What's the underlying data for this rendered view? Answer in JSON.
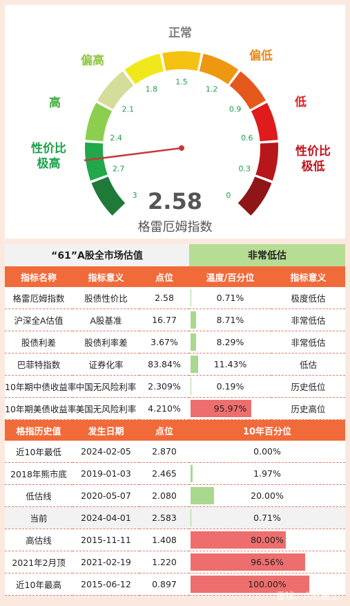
{
  "gauge": {
    "zones": [
      {
        "text": "正常",
        "color": "#7f7f7f"
      },
      {
        "text": "偏高",
        "color": "#8dc63f"
      },
      {
        "text": "偏低",
        "color": "#e38c1e"
      },
      {
        "text": "高",
        "color": "#3dae3d"
      },
      {
        "text": "低",
        "color": "#e41e26"
      },
      {
        "text": "性价比\n极高",
        "color": "#1aa24a"
      },
      {
        "text": "性价比\n极低",
        "color": "#c0141c"
      }
    ],
    "ticks": [
      "3",
      "2.7",
      "2.4",
      "2.1",
      "1.8",
      "1.5",
      "1.2",
      "0.9",
      "0.6",
      "0.3",
      "0"
    ],
    "segment_colors": [
      "#1f7a3a",
      "#22a84a",
      "#8ccf50",
      "#d4dd9a",
      "#f1e81b",
      "#f5c211",
      "#ee9811",
      "#e5581c",
      "#e01b1b",
      "#b7171a",
      "#8f1518"
    ],
    "needle_color": "#c23b3b",
    "tick_color": "#19a14a",
    "min": 0,
    "max": 3,
    "value": 2.58,
    "value_text": "2.58",
    "label": "格雷厄姆指数"
  },
  "section1": {
    "title_left": "“61”A股全市场估值",
    "title_right": "非常低估",
    "headers": [
      "指标名称",
      "指标意义",
      "点位",
      "温度/百分位",
      "指标意义"
    ],
    "rows": [
      {
        "name": "格雷厄姆指数",
        "meaning": "股债性价比",
        "point": "2.58",
        "pct": "0.71%",
        "pct_value": 0.71,
        "bar": "green",
        "level": "极度低估"
      },
      {
        "name": "沪深全A估值",
        "meaning": "A股基准",
        "point": "16.77",
        "pct": "8.71%",
        "pct_value": 8.71,
        "bar": "green",
        "level": "非常低估"
      },
      {
        "name": "股债利差",
        "meaning": "股债利率差",
        "point": "3.67%",
        "pct": "8.29%",
        "pct_value": 8.29,
        "bar": "green",
        "level": "非常低估"
      },
      {
        "name": "巴菲特指数",
        "meaning": "证券化率",
        "point": "83.84%",
        "pct": "11.43%",
        "pct_value": 11.43,
        "bar": "green",
        "level": "低估"
      },
      {
        "name": "10年期中债收益率",
        "meaning": "中国无风险利率",
        "point": "2.309%",
        "pct": "0.19%",
        "pct_value": 0.19,
        "bar": "green",
        "level": "历史低位"
      },
      {
        "name": "10年期美债收益率",
        "meaning": "美国无风险利率",
        "point": "4.210%",
        "pct": "95.97%",
        "pct_value": 95.97,
        "bar": "red",
        "level": "历史高位"
      }
    ]
  },
  "section2": {
    "headers": [
      "格指历史值",
      "发生日期",
      "点位",
      "10年百分位"
    ],
    "rows": [
      {
        "name": "近10年最低",
        "date": "2024-02-05",
        "point": "2.870",
        "pct": "0.00%",
        "pct_value": 0.0,
        "bar": "green",
        "shaded": false
      },
      {
        "name": "2018年熊市底",
        "date": "2019-01-03",
        "point": "2.465",
        "pct": "1.97%",
        "pct_value": 1.97,
        "bar": "green",
        "shaded": false
      },
      {
        "name": "低估线",
        "date": "2020-05-07",
        "point": "2.080",
        "pct": "20.00%",
        "pct_value": 20.0,
        "bar": "green",
        "shaded": false
      },
      {
        "name": "当前",
        "date": "2024-04-01",
        "point": "2.583",
        "pct": "0.71%",
        "pct_value": 0.71,
        "bar": "green",
        "shaded": true
      },
      {
        "name": "高估线",
        "date": "2015-11-11",
        "point": "1.408",
        "pct": "80.00%",
        "pct_value": 80.0,
        "bar": "red",
        "shaded": false
      },
      {
        "name": "2021年2月顶",
        "date": "2021-02-19",
        "point": "1.220",
        "pct": "96.56%",
        "pct_value": 96.56,
        "bar": "red",
        "shaded": false
      },
      {
        "name": "近10年最高",
        "date": "2015-06-12",
        "point": "0.897",
        "pct": "100.00%",
        "pct_value": 100.0,
        "bar": "red",
        "shaded": false
      }
    ]
  },
  "watermark": "雪球：六亿居士"
}
